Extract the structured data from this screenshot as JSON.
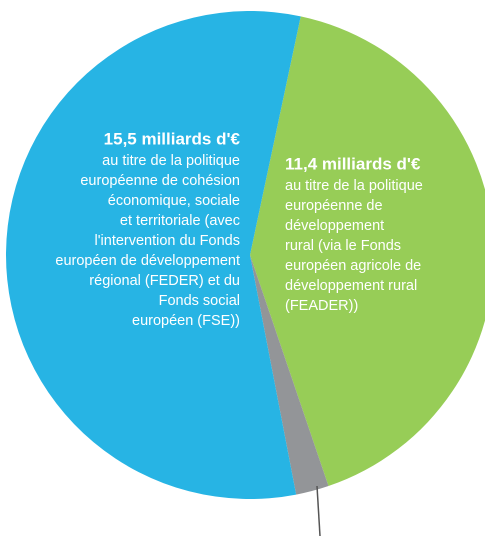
{
  "chart_data": {
    "type": "pie",
    "series": [
      {
        "values": [
          11.4,
          0.6,
          15.5
        ],
        "colors": [
          "#97cd57",
          "#939598",
          "#27b4e4"
        ]
      }
    ],
    "value_labels": [
      "11,4 milliards d'€",
      null,
      "15,5 milliards d'€"
    ],
    "descriptions": [
      [
        "au titre de la politique",
        "européenne de",
        "développement",
        "rural (via le Fonds",
        "européen agricole de",
        "développement rural",
        "(FEADER))"
      ],
      null,
      [
        "au titre de la politique",
        "européenne de cohésion",
        "économique, sociale",
        "et territoriale (avec",
        "l'intervention du Fonds",
        "européen de développement",
        "régional (FEDER) et du",
        "Fonds social",
        "européen (FSE))"
      ]
    ]
  }
}
